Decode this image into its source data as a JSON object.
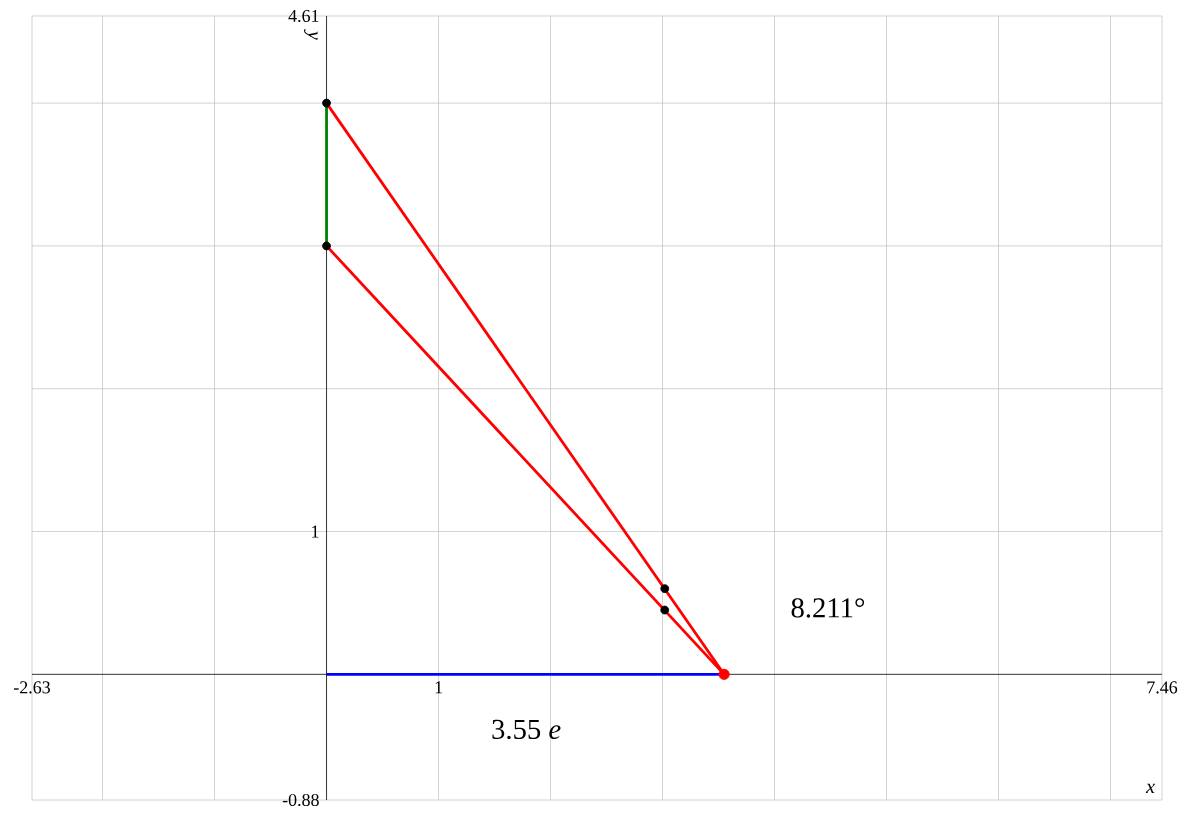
{
  "chart_data": {
    "type": "line",
    "xlabel": "x",
    "ylabel": "y",
    "xlim": [
      -2.63,
      7.46
    ],
    "ylim": [
      -0.88,
      4.61
    ],
    "xticks": [
      -2.63,
      {
        "value": -2,
        "label": null
      },
      {
        "value": -1,
        "label": null
      },
      1,
      {
        "value": 2,
        "label": null
      },
      {
        "value": 3,
        "label": null
      },
      {
        "value": 4,
        "label": null
      },
      {
        "value": 5,
        "label": null
      },
      {
        "value": 6,
        "label": null
      },
      {
        "value": 7,
        "label": null
      },
      7.46
    ],
    "yticks": [
      -0.88,
      1,
      {
        "value": 2,
        "label": null
      },
      {
        "value": 3,
        "label": null
      },
      {
        "value": 4,
        "label": null
      },
      4.61
    ],
    "grid": true,
    "series": [
      {
        "color": "#ff0000",
        "x": [
          0,
          3.55
        ],
        "values": [
          4,
          0
        ],
        "marker": "none"
      },
      {
        "color": "#ff0000",
        "x": [
          0,
          3.55
        ],
        "values": [
          3,
          0
        ],
        "marker": "none"
      },
      {
        "color": "#008000",
        "x": [
          0,
          0
        ],
        "values": [
          3,
          4
        ],
        "marker": "none"
      },
      {
        "color": "#0000ff",
        "x": [
          0,
          3.55
        ],
        "values": [
          0,
          0
        ],
        "marker": "none"
      },
      {
        "type": "scatter",
        "color": "#000000",
        "x": [
          0,
          0,
          3.02,
          3.02
        ],
        "values": [
          4,
          3,
          0.6,
          0.45
        ],
        "marker": "circle"
      },
      {
        "type": "scatter",
        "color": "#ff0000",
        "x": [
          3.55
        ],
        "values": [
          0
        ],
        "marker": "circle"
      }
    ],
    "annotations": [
      "8.211°",
      "3.55 *e*"
    ]
  }
}
